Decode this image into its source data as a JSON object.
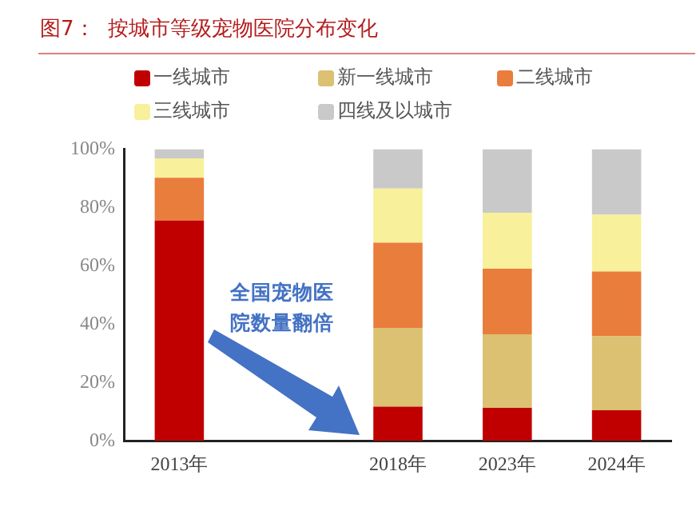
{
  "chart_data": {
    "type": "bar",
    "stacked": true,
    "title": "图7：  按城市等级宠物医院分布变化",
    "categories": [
      "2013年",
      null,
      "2018年",
      "2023年",
      "2024年"
    ],
    "series": [
      {
        "name": "一线城市",
        "color": "#c00000",
        "values": [
          75.5,
          null,
          11.7,
          11.3,
          10.5
        ]
      },
      {
        "name": "新一线城市",
        "color": "#dbc171",
        "values": [
          0,
          null,
          27,
          25.2,
          25.3
        ]
      },
      {
        "name": "二线城市",
        "color": "#e97d3c",
        "values": [
          14.7,
          null,
          29.2,
          22.5,
          22.2
        ]
      },
      {
        "name": "三线城市",
        "color": "#f8f09a",
        "values": [
          6.6,
          null,
          18.6,
          19.2,
          19.5
        ]
      },
      {
        "name": "四线及以城市",
        "color": "#c9c9c9",
        "values": [
          3.2,
          null,
          13.5,
          21.8,
          22.5
        ]
      }
    ],
    "ylim": [
      0,
      100
    ],
    "yticks": [
      {
        "value": 0,
        "label": "0%"
      },
      {
        "value": 20,
        "label": "20%"
      },
      {
        "value": 40,
        "label": "40%"
      },
      {
        "value": 60,
        "label": "60%"
      },
      {
        "value": 80,
        "label": "80%"
      },
      {
        "value": 100,
        "label": "100%"
      }
    ],
    "grid": false,
    "legend": "top",
    "annotations": [
      "全国宠物医院数量翻倍"
    ]
  }
}
